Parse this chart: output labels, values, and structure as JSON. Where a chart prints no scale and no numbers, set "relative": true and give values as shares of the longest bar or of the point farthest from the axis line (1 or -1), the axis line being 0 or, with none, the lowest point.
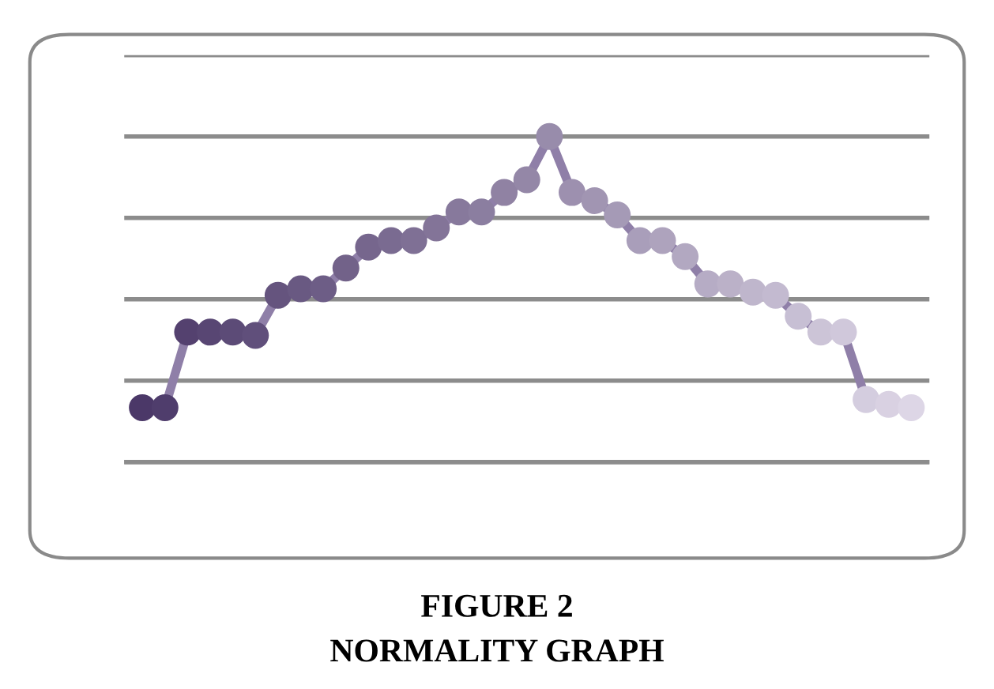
{
  "chart_data": {
    "type": "line",
    "title": "FIGURE 2",
    "subtitle": "NORMALITY GRAPH",
    "relative": true,
    "grid": "y",
    "marker": "circle",
    "line_style": "solid",
    "categories": [
      null,
      null,
      null,
      null,
      null,
      null,
      null,
      null,
      null,
      null,
      null,
      null,
      null,
      null,
      null,
      null,
      null,
      null,
      null,
      null,
      null,
      null,
      null,
      null,
      null,
      null,
      null,
      null,
      null,
      null,
      null,
      null,
      null,
      null,
      null
    ],
    "series": [
      {
        "color": "#8f7fa8",
        "values": [
          0.167,
          0.167,
          0.399,
          0.399,
          0.399,
          0.389,
          0.512,
          0.532,
          0.532,
          0.596,
          0.66,
          0.68,
          0.68,
          0.719,
          0.768,
          0.768,
          0.828,
          0.867,
          1,
          0.828,
          0.803,
          0.759,
          0.68,
          0.68,
          0.631,
          0.547,
          0.547,
          0.522,
          0.512,
          0.448,
          0.399,
          0.399,
          0.192,
          0.177,
          0.167
        ],
        "colors": [
          "#4b3868",
          "#4f3d6c",
          "#54416f",
          "#584673",
          "#5c4b77",
          "#604f7b",
          "#65547e",
          "#695982",
          "#6d5d86",
          "#726289",
          "#76668d",
          "#7a6b91",
          "#7f7095",
          "#837498",
          "#87799c",
          "#8b7ea0",
          "#9082a3",
          "#9487a7",
          "#988cab",
          "#9d90af",
          "#a195b2",
          "#a59ab6",
          "#a99eba",
          "#aea3bd",
          "#b2a8c1",
          "#b6acc5",
          "#bbb1c8",
          "#bfb6cc",
          "#c3bad0",
          "#c7bfd4",
          "#ccc4d7",
          "#d0c8db",
          "#d4cddf",
          "#d9d1e2",
          "#ddd6e6"
        ]
      }
    ]
  }
}
